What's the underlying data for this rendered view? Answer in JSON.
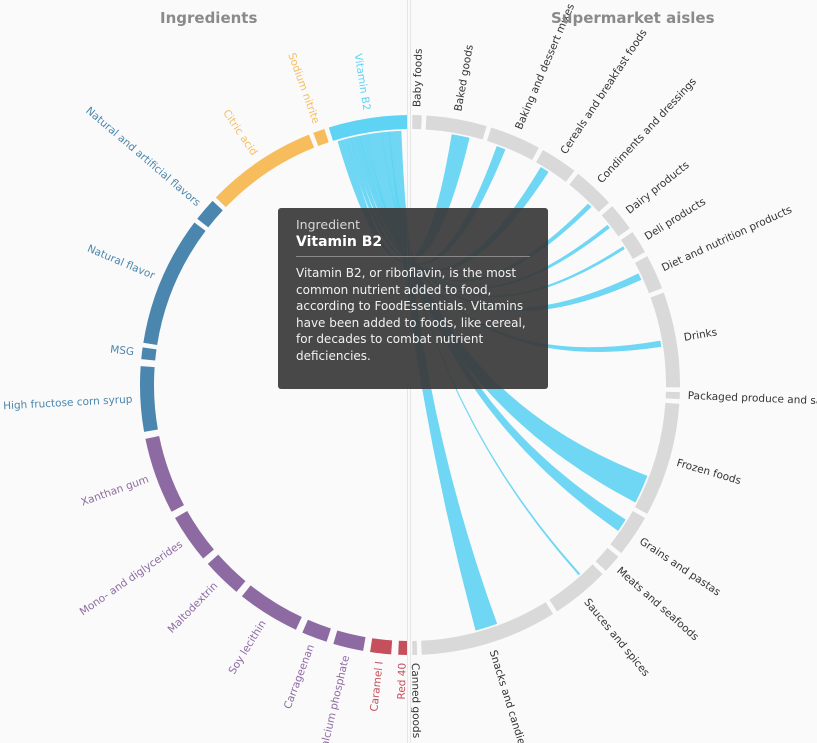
{
  "headers": {
    "left": "Ingredients",
    "right": "Supermarket aisles"
  },
  "tooltip": {
    "kind": "Ingredient",
    "title": "Vitamin B2",
    "body": "Vitamin B2, or riboflavin, is the most common nutrient added to food, according to FoodEssentials. Vitamins have been added to foods, like cereal, for decades to combat nutrient deficiencies."
  },
  "colors": {
    "highlight": "#5fd3f3",
    "aisle": "#d9d9d9",
    "orange": "#f7bd5c",
    "blue": "#4a86ad",
    "purple": "#8e6aa2",
    "red": "#c54f5b",
    "background": "#fafafa"
  },
  "ingredients": [
    {
      "name": "Vitamin B2",
      "group": "highlight"
    },
    {
      "name": "Sodium nitrite",
      "group": "orange"
    },
    {
      "name": "Citric acid",
      "group": "orange"
    },
    {
      "name": "Natural and artificial flavors",
      "group": "blue"
    },
    {
      "name": "Natural flavor",
      "group": "blue"
    },
    {
      "name": "MSG",
      "group": "blue"
    },
    {
      "name": "High fructose corn syrup",
      "group": "blue"
    },
    {
      "name": "Xanthan gum",
      "group": "purple"
    },
    {
      "name": "Mono- and diglycerides",
      "group": "purple"
    },
    {
      "name": "Maltodextrin",
      "group": "purple"
    },
    {
      "name": "Soy lecithin",
      "group": "purple"
    },
    {
      "name": "Carrageenan",
      "group": "purple"
    },
    {
      "name": "Calcium phosphate",
      "group": "purple"
    },
    {
      "name": "Caramel I",
      "group": "red"
    },
    {
      "name": "Red 40",
      "group": "red"
    }
  ],
  "aisles": [
    "Baby foods",
    "Baked goods",
    "Baking and dessert mixes",
    "Cereals and breakfast foods",
    "Condiments and dressings",
    "Dairy products",
    "Deli products",
    "Diet and nutrition products",
    "Drinks",
    "Packaged produce and salad items",
    "Frozen foods",
    "Grains and pastas",
    "Meats and seafoods",
    "Sauces and spices",
    "Snacks and candies",
    "Canned goods"
  ]
}
